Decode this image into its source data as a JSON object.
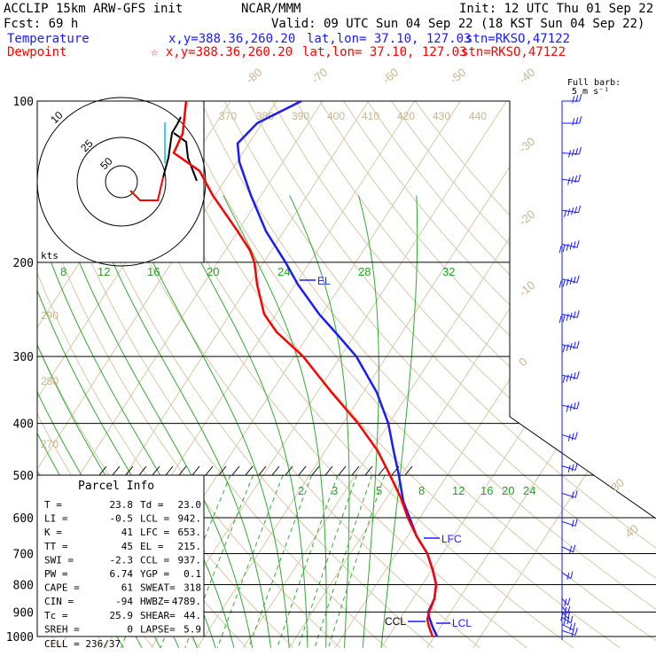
{
  "header": {
    "title_left": "ACCLIP 15km ARW-GFS init",
    "title_center": "NCAR/MMM",
    "init": "Init: 12 UTC Thu 01 Sep 22",
    "fcst": "Fcst:   69 h",
    "valid": "Valid: 09 UTC Sun 04 Sep 22 (18 KST Sun 04 Sep 22)",
    "temp_label": "Temperature",
    "temp_xy": "x,y=388.36,260.20",
    "temp_latlon": "lat,lon= 37.10, 127.03",
    "temp_stn": "stn=RKSO,47122",
    "dew_label": "Dewpoint",
    "dew_xy": "☆ x,y=388.36,260.20",
    "dew_latlon": "lat,lon= 37.10, 127.03",
    "dew_stn": "stn=RKSO,47122",
    "barb_key_1": "Full barb:",
    "barb_key_2": "5 m s⁻¹"
  },
  "chart_data": {
    "type": "line",
    "title": "",
    "ylabel": "",
    "pressure_axis": {
      "labels": [
        "100",
        "200",
        "300",
        "400",
        "500",
        "600",
        "700",
        "800",
        "900",
        "1000"
      ],
      "levels": [
        100,
        200,
        300,
        400,
        500,
        600,
        700,
        800,
        900,
        1000
      ]
    },
    "isotherm_labels": [
      "-80",
      "-70",
      "-60",
      "-50",
      "-40",
      "-30",
      "-20",
      "-10",
      "0",
      "10",
      "20",
      "30",
      "40"
    ],
    "theta_labels": [
      "370",
      "380",
      "390",
      "400",
      "410",
      "420",
      "430",
      "440",
      "290",
      "280",
      "270"
    ],
    "theta_e_labels": [
      "8",
      "12",
      "16",
      "20",
      "24",
      "28",
      "32"
    ],
    "mixing_ratio_labels": [
      "2",
      "3",
      "5",
      "8",
      "12",
      "16",
      "20",
      "24"
    ],
    "markers": {
      "el": "EL",
      "lfc": "LFC",
      "ccl": "CCL",
      "lcl": "LCL"
    },
    "hodograph": {
      "ring_labels": [
        "50",
        "25",
        "10"
      ],
      "units_label": "kts"
    },
    "series": [
      {
        "name": "Temperature",
        "color": "#ff0000",
        "points": [
          [
            1000,
            23.8
          ],
          [
            975,
            23.0
          ],
          [
            950,
            21.5
          ],
          [
            925,
            22.0
          ],
          [
            900,
            20.8
          ],
          [
            850,
            19.5
          ],
          [
            800,
            17.5
          ],
          [
            750,
            14.8
          ],
          [
            700,
            11.0
          ],
          [
            650,
            7.0
          ],
          [
            600,
            2.8
          ],
          [
            550,
            -1.5
          ],
          [
            500,
            -5.5
          ],
          [
            450,
            -10.5
          ],
          [
            400,
            -16.0
          ],
          [
            350,
            -23.5
          ],
          [
            300,
            -31.5
          ],
          [
            250,
            -41.0
          ],
          [
            225,
            -49.0
          ],
          [
            200,
            -54.5
          ],
          [
            175,
            -61.0
          ],
          [
            150,
            -66.0
          ],
          [
            125,
            -68.0
          ],
          [
            100,
            -66.0
          ]
        ]
      },
      {
        "name": "Dewpoint",
        "color": "#1a1aff",
        "points": [
          [
            1000,
            23.0
          ],
          [
            975,
            22.0
          ],
          [
            950,
            20.5
          ],
          [
            925,
            19.5
          ],
          [
            900,
            18.0
          ],
          [
            850,
            16.0
          ],
          [
            800,
            14.0
          ],
          [
            750,
            11.0
          ],
          [
            700,
            8.0
          ],
          [
            650,
            4.5
          ],
          [
            600,
            0.5
          ],
          [
            550,
            -3.0
          ],
          [
            500,
            -7.0
          ],
          [
            450,
            -13.0
          ],
          [
            400,
            -20.0
          ],
          [
            350,
            -28.0
          ],
          [
            300,
            -38.0
          ],
          [
            250,
            -53.0
          ],
          [
            225,
            -58.0
          ],
          [
            200,
            -66.0
          ],
          [
            175,
            -75.0
          ],
          [
            150,
            -80.0
          ],
          [
            125,
            -82.0
          ],
          [
            100,
            -82.0
          ]
        ]
      }
    ],
    "hodograph_path": [
      [
        0,
        0
      ],
      [
        3,
        -3
      ],
      [
        9,
        -3
      ],
      [
        12,
        4
      ],
      [
        14,
        16
      ],
      [
        19,
        30
      ],
      [
        22,
        40
      ],
      [
        18,
        48
      ],
      [
        10,
        56
      ]
    ],
    "wind_barbs": [
      {
        "p": 100,
        "spd": 15,
        "dir": 270
      },
      {
        "p": 110,
        "spd": 15,
        "dir": 270
      },
      {
        "p": 125,
        "spd": 20,
        "dir": 260
      },
      {
        "p": 140,
        "spd": 20,
        "dir": 250
      },
      {
        "p": 160,
        "spd": 25,
        "dir": 250
      },
      {
        "p": 185,
        "spd": 30,
        "dir": 240
      },
      {
        "p": 215,
        "spd": 30,
        "dir": 240
      },
      {
        "p": 250,
        "spd": 30,
        "dir": 240
      },
      {
        "p": 285,
        "spd": 25,
        "dir": 240
      },
      {
        "p": 325,
        "spd": 25,
        "dir": 240
      },
      {
        "p": 370,
        "spd": 20,
        "dir": 240
      },
      {
        "p": 420,
        "spd": 15,
        "dir": 230
      },
      {
        "p": 480,
        "spd": 15,
        "dir": 230
      },
      {
        "p": 540,
        "spd": 10,
        "dir": 230
      },
      {
        "p": 610,
        "spd": 10,
        "dir": 230
      },
      {
        "p": 680,
        "spd": 10,
        "dir": 220
      },
      {
        "p": 760,
        "spd": 10,
        "dir": 210
      },
      {
        "p": 850,
        "spd": 10,
        "dir": 200
      },
      {
        "p": 880,
        "spd": 10,
        "dir": 200
      },
      {
        "p": 900,
        "spd": 15,
        "dir": 200
      },
      {
        "p": 920,
        "spd": 15,
        "dir": 210
      },
      {
        "p": 950,
        "spd": 10,
        "dir": 220
      },
      {
        "p": 975,
        "spd": 10,
        "dir": 230
      }
    ]
  },
  "parcel_info": {
    "title": "Parcel Info",
    "rows": [
      [
        "T  =",
        "23.8",
        "Td =",
        "23.0"
      ],
      [
        "LI =",
        "-0.5",
        "LCL =",
        "942."
      ],
      [
        "K  =",
        "41",
        "LFC =",
        "653."
      ],
      [
        "TT =",
        "45",
        "EL =",
        "215."
      ],
      [
        "SWI =",
        "-2.3",
        "CCL =",
        "937."
      ],
      [
        "PW =",
        "6.74",
        "YGP =",
        "0.1"
      ],
      [
        "CAPE =",
        "61",
        "SWEAT=",
        "318"
      ],
      [
        "CIN =",
        "-94",
        "HWBZ=",
        "4789."
      ],
      [
        "Tc =",
        "25.9",
        "SHEAR=",
        "44."
      ],
      [
        "SREH =",
        "0",
        "LAPSE=",
        "5.9"
      ]
    ],
    "cell": "CELL = 236/37"
  }
}
